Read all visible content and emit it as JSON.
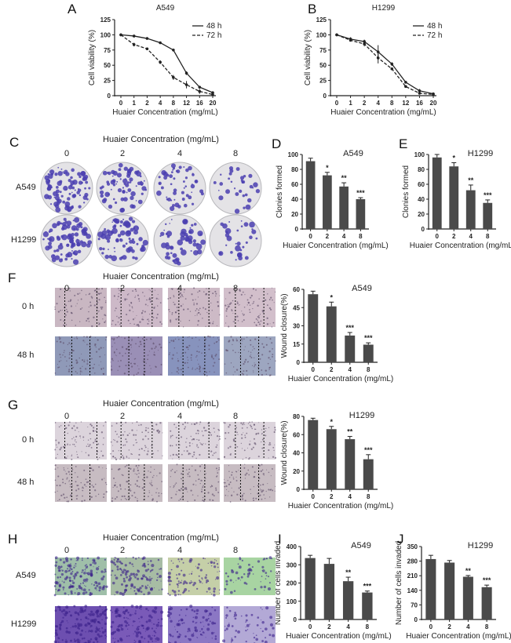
{
  "panel_labels": [
    "A",
    "B",
    "C",
    "D",
    "E",
    "F",
    "G",
    "H",
    "I",
    "J"
  ],
  "image_panels": {
    "C": {
      "header": "Huaier Concentration (mg/mL)",
      "columns": [
        "0",
        "2",
        "4",
        "8"
      ],
      "rows": [
        "A549",
        "H1299"
      ]
    },
    "F": {
      "header": "Huaier Concentration (mg/mL)",
      "columns": [
        "0",
        "2",
        "4",
        "8"
      ],
      "rows": [
        "0 h",
        "48 h"
      ]
    },
    "G": {
      "header": "Huaier Concentration (mg/mL)",
      "columns": [
        "0",
        "2",
        "4",
        "8"
      ],
      "rows": [
        "0 h",
        "48 h"
      ]
    },
    "H": {
      "header": "Huaier Concentration (mg/mL)",
      "columns": [
        "0",
        "2",
        "4",
        "8"
      ],
      "rows": [
        "A549",
        "H1299"
      ]
    }
  },
  "colors": {
    "line": "#222222",
    "bar": "#4a4a4a",
    "stain": "#4b3fb0"
  },
  "chart_data": [
    {
      "panel": "A",
      "type": "line",
      "title": "A549",
      "xlabel": "Huaier Concentration (mg/mL)",
      "ylabel": "Cell viability (%)",
      "categories": [
        "0",
        "1",
        "2",
        "4",
        "8",
        "12",
        "16",
        "20"
      ],
      "yticks": [
        0,
        25,
        50,
        75,
        100,
        125
      ],
      "ylim": [
        0,
        125
      ],
      "legend": "top-right",
      "series": [
        {
          "name": "48 h",
          "style": "solid",
          "values": [
            100,
            98,
            94,
            87,
            75,
            37,
            14,
            5
          ],
          "errors": [
            1,
            2,
            1,
            2,
            2,
            3,
            2,
            1
          ]
        },
        {
          "name": "72 h",
          "style": "dashed",
          "values": [
            100,
            84,
            77,
            55,
            30,
            18,
            7,
            2
          ],
          "errors": [
            1,
            3,
            2,
            3,
            4,
            6,
            4,
            2
          ]
        }
      ]
    },
    {
      "panel": "B",
      "type": "line",
      "title": "H1299",
      "xlabel": "Huaier Concentration (mg/mL)",
      "ylabel": "Cell viability (%)",
      "categories": [
        "0",
        "1",
        "2",
        "4",
        "8",
        "12",
        "16",
        "20"
      ],
      "yticks": [
        0,
        25,
        50,
        75,
        100,
        125
      ],
      "ylim": [
        0,
        125
      ],
      "legend": "top-right",
      "series": [
        {
          "name": "48 h",
          "style": "solid",
          "values": [
            100,
            93,
            89,
            72,
            52,
            22,
            8,
            3
          ],
          "errors": [
            1,
            3,
            3,
            11,
            3,
            2,
            3,
            1
          ]
        },
        {
          "name": "72 h",
          "style": "dashed",
          "values": [
            100,
            91,
            85,
            62,
            44,
            15,
            4,
            2
          ],
          "errors": [
            1,
            2,
            4,
            9,
            2,
            1,
            1,
            1
          ]
        }
      ]
    },
    {
      "panel": "D",
      "type": "bar",
      "title": "A549",
      "xlabel": "Huaier Concentration (mg/mL)",
      "ylabel": "Clonies formed",
      "categories": [
        "0",
        "2",
        "4",
        "8"
      ],
      "values": [
        91,
        72,
        57,
        40
      ],
      "errors": [
        4,
        4,
        5,
        2
      ],
      "annotations": [
        "",
        "*",
        "**",
        "***"
      ],
      "yticks": [
        0,
        20,
        40,
        60,
        80,
        100
      ],
      "ylim": [
        0,
        100
      ]
    },
    {
      "panel": "E",
      "type": "bar",
      "title": "H1299",
      "xlabel": "Huaier Concentration (mg/mL)",
      "ylabel": "Clonies formed",
      "categories": [
        "0",
        "2",
        "4",
        "8"
      ],
      "values": [
        96,
        84,
        52,
        35
      ],
      "errors": [
        4,
        5,
        7,
        4
      ],
      "annotations": [
        "",
        "*",
        "**",
        "***"
      ],
      "yticks": [
        0,
        20,
        40,
        60,
        80,
        100
      ],
      "ylim": [
        0,
        100
      ]
    },
    {
      "panel": "F",
      "type": "bar",
      "title": "A549",
      "xlabel": "Huaier Concentration (mg/mL)",
      "ylabel": "Wound closure(%)",
      "categories": [
        "0",
        "2",
        "4",
        "8"
      ],
      "values": [
        56,
        46,
        22,
        14.5
      ],
      "errors": [
        2.5,
        3.5,
        2.5,
        1.5
      ],
      "annotations": [
        "",
        "*",
        "***",
        "***"
      ],
      "yticks": [
        0,
        15,
        30,
        45,
        60
      ],
      "ylim": [
        0,
        60
      ]
    },
    {
      "panel": "G",
      "type": "bar",
      "title": "H1299",
      "xlabel": "Huaier Concentration (mg/mL)",
      "ylabel": "Wound closure(%)",
      "categories": [
        "0",
        "2",
        "4",
        "8"
      ],
      "values": [
        76,
        66,
        55,
        33
      ],
      "errors": [
        2,
        3,
        3,
        5
      ],
      "annotations": [
        "",
        "*",
        "**",
        "***"
      ],
      "yticks": [
        0,
        20,
        40,
        60,
        80
      ],
      "ylim": [
        0,
        80
      ]
    },
    {
      "panel": "I",
      "type": "bar",
      "title": "A549",
      "xlabel": "Huaier Concentration (mg/mL)",
      "ylabel": "Number of cells invaded",
      "categories": [
        "0",
        "2",
        "4",
        "8"
      ],
      "values": [
        337,
        305,
        210,
        148
      ],
      "errors": [
        15,
        30,
        22,
        8
      ],
      "annotations": [
        "",
        "",
        "**",
        "***"
      ],
      "yticks": [
        0,
        100,
        200,
        300,
        400
      ],
      "ylim": [
        0,
        400
      ]
    },
    {
      "panel": "J",
      "type": "bar",
      "title": "H1299",
      "xlabel": "Huaier Concentration (mg/mL)",
      "ylabel": "Number of cells invaded",
      "categories": [
        "0",
        "2",
        "4",
        "8"
      ],
      "values": [
        290,
        273,
        205,
        155
      ],
      "errors": [
        18,
        10,
        6,
        10
      ],
      "annotations": [
        "",
        "",
        "**",
        "***"
      ],
      "yticks": [
        0,
        70,
        140,
        210,
        280,
        350
      ],
      "ylim": [
        0,
        350
      ]
    }
  ]
}
